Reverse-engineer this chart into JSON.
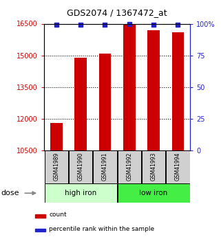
{
  "title": "GDS2074 / 1367472_at",
  "samples": [
    "GSM41989",
    "GSM41990",
    "GSM41991",
    "GSM41992",
    "GSM41993",
    "GSM41994"
  ],
  "bar_values": [
    11800,
    14900,
    15100,
    16500,
    16200,
    16100
  ],
  "percentile_values": [
    99,
    99,
    99,
    100,
    99,
    99
  ],
  "bar_color": "#cc0000",
  "dot_color": "#2222cc",
  "ylim_left": [
    10500,
    16500
  ],
  "ylim_right": [
    0,
    100
  ],
  "yticks_left": [
    10500,
    12000,
    13500,
    15000,
    16500
  ],
  "yticks_right": [
    0,
    25,
    50,
    75,
    100
  ],
  "ytick_labels_right": [
    "0",
    "25",
    "50",
    "75",
    "100%"
  ],
  "groups": [
    {
      "label": "high iron",
      "indices": [
        0,
        1,
        2
      ],
      "color": "#ccffcc"
    },
    {
      "label": "low iron",
      "indices": [
        3,
        4,
        5
      ],
      "color": "#44ee44"
    }
  ],
  "dose_label": "dose",
  "legend_count_label": "count",
  "legend_percentile_label": "percentile rank within the sample",
  "left_tick_color": "#cc0000",
  "right_tick_color": "#2222cc",
  "bar_width": 0.5,
  "sample_box_color": "#d0d0d0",
  "grid_linestyle": ":",
  "grid_linewidth": 0.8
}
